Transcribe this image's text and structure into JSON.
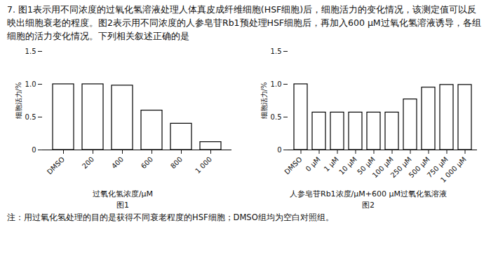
{
  "question": {
    "text": "7. 图1表示用不同浓度的过氧化氢溶液处理人体真皮成纤维细胞(HSF细胞)后，细胞活力的变化情况，该测定值可以反映出细胞衰老的程度。图2表示用不同浓度的人参皂苷Rb1预处理HSF细胞后，再加入600 μM过氧化氢溶液诱导，各组细胞的活力变化情况。下列相关叙述正确的是",
    "note": "注：用过氧化氢处理的目的是获得不同衰老程度的HSF细胞；DMSO组均为空白对照组。"
  },
  "chart_data": [
    {
      "type": "bar",
      "title": "图1",
      "x_label": "过氧化氢浓度/μM",
      "y_label": "细胞活力/%",
      "categories": [
        "DMSO",
        "200",
        "400",
        "600",
        "800",
        "1 000"
      ],
      "values": [
        1.0,
        1.0,
        0.98,
        0.6,
        0.4,
        0.12
      ],
      "color": "#ffffff",
      "ylim": [
        0,
        1.5
      ],
      "yticks": [
        0,
        0.5,
        {
          "value": 1.0,
          "label": "1.0"
        },
        1.5
      ],
      "grid": false
    },
    {
      "type": "bar",
      "title": "图2",
      "x_label": "人参皂苷Rb1浓度/μM+600 μM过氧化氢溶液",
      "y_label": "细胞活力/%",
      "categories": [
        "DMSO",
        "0 μM",
        "1 μM",
        "10 μM",
        "50 μM",
        "100 μM",
        "250 μM",
        "500 μM",
        "750 μM",
        "1 000 μM"
      ],
      "values": [
        1.0,
        0.57,
        0.57,
        0.57,
        0.57,
        0.57,
        0.77,
        0.95,
        0.99,
        0.99
      ],
      "color": "#ffffff",
      "ylim": [
        0,
        1.5
      ],
      "yticks": [
        0,
        0.5,
        {
          "value": 1.0,
          "label": "1.0"
        },
        1.5
      ],
      "grid": false
    }
  ]
}
